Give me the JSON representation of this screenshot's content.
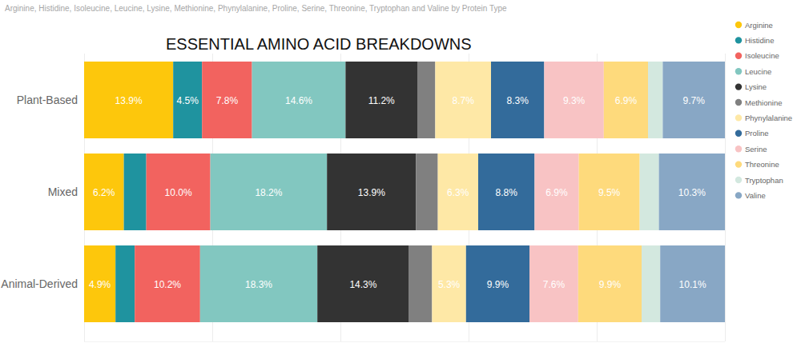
{
  "chart_data": {
    "type": "bar",
    "title": "ESSENTIAL AMINO ACID BREAKDOWNS",
    "subtitle": "Arginine, Histidine, Isoleucine, Leucine, Lysine, Methionine, Phynylalanine, Proline, Serine, Threonine, Tryptophan and Valine by Protein Type",
    "orientation": "horizontal",
    "stacked": true,
    "data_labels": true,
    "grid": true,
    "tick_labels": false,
    "legend": "top-right",
    "xlim": [
      0,
      100
    ],
    "xticks": [
      0,
      20,
      40,
      60,
      80,
      100
    ],
    "categories": [
      "Plant-Based",
      "Mixed",
      "Animal-Derived"
    ],
    "series": [
      {
        "name": "Arginine",
        "color": "#FDC70C",
        "values": [
          13.9,
          6.2,
          4.9
        ],
        "value_labels": [
          "13.9%",
          "6.2%",
          "4.9%"
        ]
      },
      {
        "name": "Histidine",
        "color": "#1F939F",
        "values": [
          4.5,
          3.5,
          3.0
        ],
        "value_labels": [
          "4.5%",
          null,
          null
        ]
      },
      {
        "name": "Isoleucine",
        "color": "#F2635F",
        "values": [
          7.8,
          10.0,
          10.2
        ],
        "value_labels": [
          "7.8%",
          "10.0%",
          "10.2%"
        ]
      },
      {
        "name": "Leucine",
        "color": "#82C7C0",
        "values": [
          14.6,
          18.2,
          18.3
        ],
        "value_labels": [
          "14.6%",
          "18.2%",
          "18.3%"
        ]
      },
      {
        "name": "Lysine",
        "color": "#333333",
        "values": [
          11.2,
          13.9,
          14.3
        ],
        "value_labels": [
          "11.2%",
          "13.9%",
          "14.3%"
        ]
      },
      {
        "name": "Methionine",
        "color": "#808080",
        "values": [
          2.8,
          3.4,
          3.6
        ],
        "value_labels": [
          null,
          null,
          null
        ]
      },
      {
        "name": "Phynylalanine",
        "color": "#FEE8A6",
        "values": [
          8.7,
          6.3,
          5.3
        ],
        "value_labels": [
          "8.7%",
          "6.3%",
          "5.3%"
        ]
      },
      {
        "name": "Proline",
        "color": "#336B9B",
        "values": [
          8.3,
          8.8,
          9.9
        ],
        "value_labels": [
          "8.3%",
          "8.8%",
          "9.9%"
        ]
      },
      {
        "name": "Serine",
        "color": "#F8C3C4",
        "values": [
          9.3,
          6.9,
          7.6
        ],
        "value_labels": [
          "9.3%",
          "6.9%",
          "7.6%"
        ]
      },
      {
        "name": "Threonine",
        "color": "#FEDA7C",
        "values": [
          6.9,
          9.5,
          9.9
        ],
        "value_labels": [
          "6.9%",
          "9.5%",
          "9.9%"
        ]
      },
      {
        "name": "Tryptophan",
        "color": "#D3E8DF",
        "values": [
          2.3,
          3.0,
          2.9
        ],
        "value_labels": [
          null,
          null,
          null
        ]
      },
      {
        "name": "Valine",
        "color": "#88A7C5",
        "values": [
          9.7,
          10.3,
          10.1
        ],
        "value_labels": [
          "9.7%",
          "10.3%",
          "10.1%"
        ]
      }
    ]
  }
}
